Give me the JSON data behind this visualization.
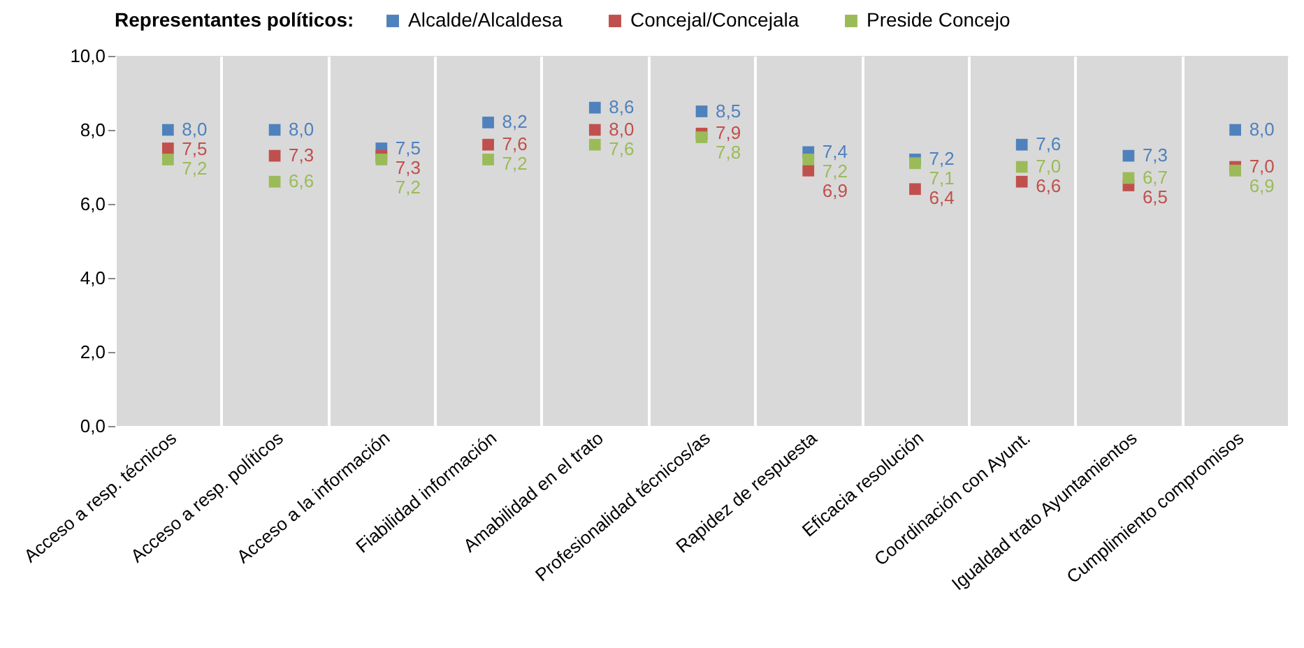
{
  "chart_data": {
    "type": "scatter",
    "legend_title": "Representantes políticos:",
    "legend": "top",
    "marker": "square",
    "grid": "x",
    "categories": [
      "Acceso a resp. técnicos",
      "Acceso a resp. políticos",
      "Acceso a la información",
      "Fiabilidad información",
      "Amabilidad en el trato",
      "Profesionalidad técnicos/as",
      "Rapidez de respuesta",
      "Eficacia resolución",
      "Coordinación con Ayunt.",
      "Igualdad trato Ayuntamientos",
      "Cumplimiento compromisos"
    ],
    "ylim": [
      0,
      10
    ],
    "yticks": [
      {
        "value": 0,
        "label": "0,0"
      },
      {
        "value": 2,
        "label": "2,0"
      },
      {
        "value": 4,
        "label": "4,0"
      },
      {
        "value": 6,
        "label": "6,0"
      },
      {
        "value": 8,
        "label": "8,0"
      },
      {
        "value": 10,
        "label": "10,0"
      }
    ],
    "series": [
      {
        "name": "Alcalde/Alcaldesa",
        "color": "#4f81bd",
        "values": [
          8.0,
          8.0,
          7.5,
          8.2,
          8.6,
          8.5,
          7.4,
          7.2,
          7.6,
          7.3,
          8.0
        ],
        "value_labels": [
          "8,0",
          "8,0",
          "7,5",
          "8,2",
          "8,6",
          "8,5",
          "7,4",
          "7,2",
          "7,6",
          "7,3",
          "8,0"
        ]
      },
      {
        "name": "Concejal/Concejala",
        "color": "#c0504d",
        "values": [
          7.5,
          7.3,
          7.3,
          7.6,
          8.0,
          7.9,
          6.9,
          6.4,
          6.6,
          6.5,
          7.0
        ],
        "value_labels": [
          "7,5",
          "7,3",
          "7,3",
          "7,6",
          "8,0",
          "7,9",
          "6,9",
          "6,4",
          "6,6",
          "6,5",
          "7,0"
        ]
      },
      {
        "name": "Preside Concejo",
        "color": "#9bbb59",
        "values": [
          7.2,
          6.6,
          7.2,
          7.2,
          7.6,
          7.8,
          7.2,
          7.1,
          7.0,
          6.7,
          6.9
        ],
        "value_labels": [
          "7,2",
          "6,6",
          "7,2",
          "7,2",
          "7,6",
          "7,8",
          "7,2",
          "7,1",
          "7,0",
          "6,7",
          "6,9"
        ]
      }
    ]
  }
}
